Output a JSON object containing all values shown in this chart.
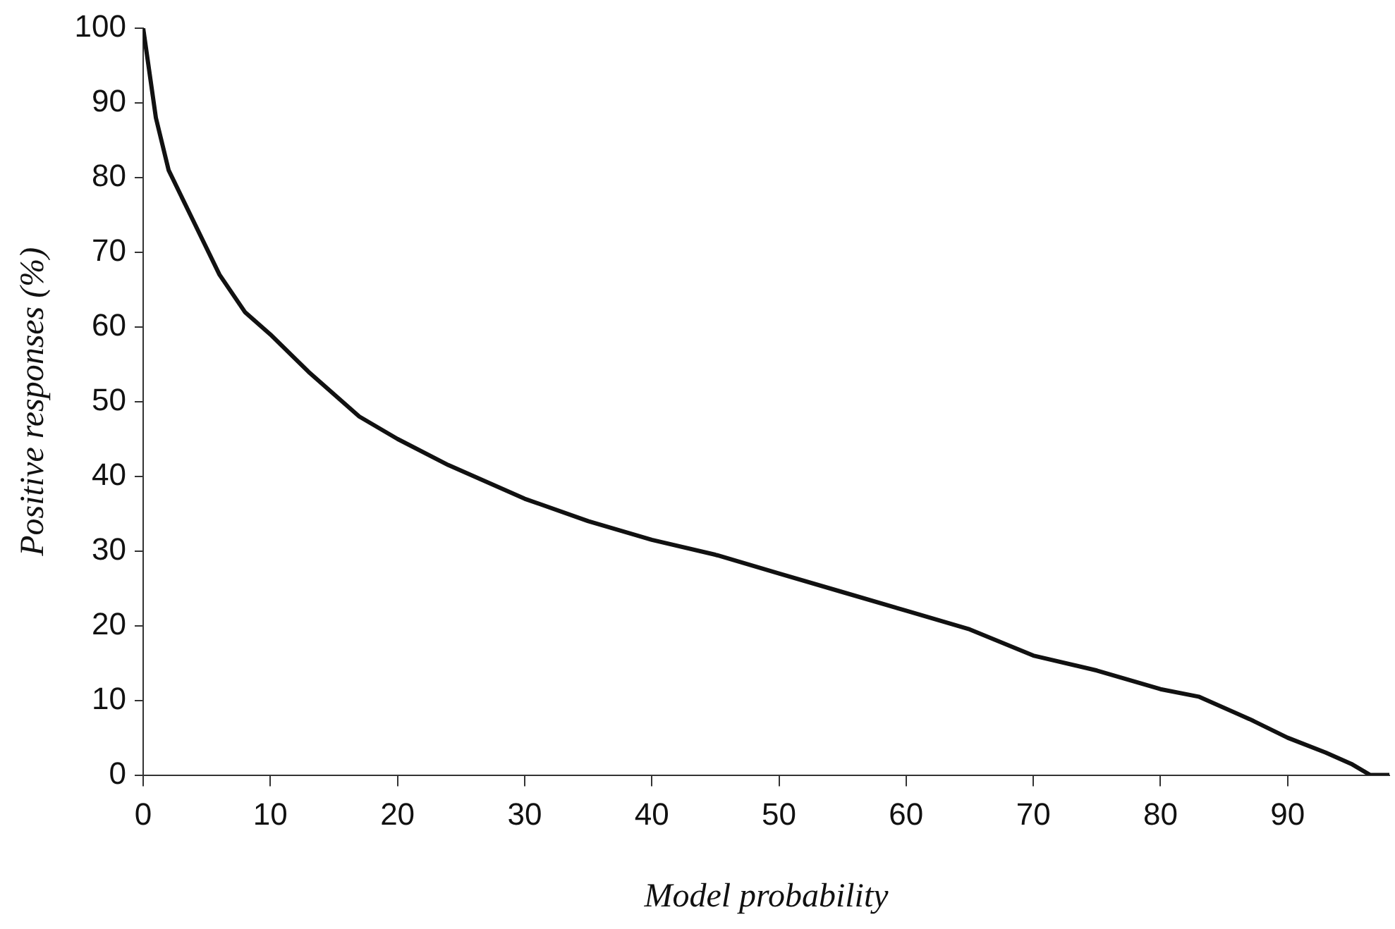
{
  "chart_data": {
    "type": "line",
    "xlabel": "Model probability",
    "ylabel": "Positive responses (%)",
    "x": [
      0,
      1,
      2,
      4,
      6,
      8,
      10,
      13,
      17,
      20,
      24,
      30,
      35,
      40,
      45,
      50,
      55,
      60,
      65,
      70,
      75,
      80,
      83,
      87,
      90,
      93,
      95,
      96.5,
      98
    ],
    "series": [
      {
        "color": "#111111",
        "values": [
          100,
          88,
          81,
          74,
          67,
          62,
          59,
          54,
          48,
          45,
          41.5,
          37,
          34,
          31.5,
          29.5,
          27,
          24.5,
          22,
          19.5,
          16,
          14,
          11.5,
          10.5,
          7.5,
          5,
          3,
          1.5,
          0,
          0
        ]
      }
    ],
    "xlim": [
      0,
      98
    ],
    "ylim": [
      0,
      100
    ],
    "xticks": [
      0,
      10,
      20,
      30,
      40,
      50,
      60,
      70,
      80,
      90
    ],
    "yticks": [
      0,
      10,
      20,
      30,
      40,
      50,
      60,
      70,
      80,
      90,
      100
    ],
    "grid": false,
    "marker": "none"
  }
}
